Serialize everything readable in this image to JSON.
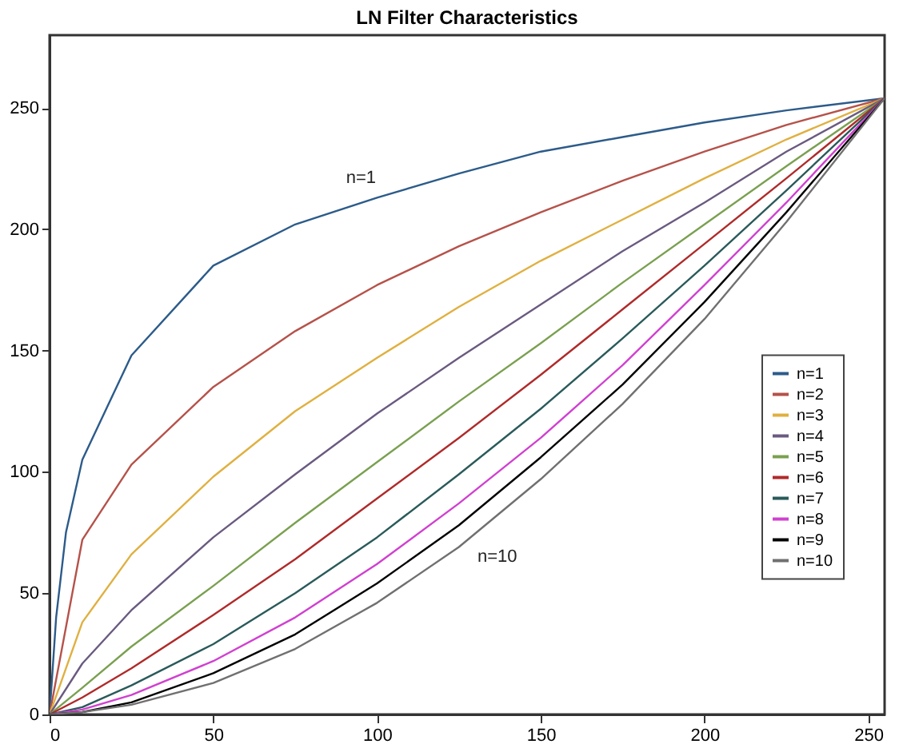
{
  "chart_data": {
    "type": "line",
    "title": "LN Filter Characteristics",
    "x": [
      0,
      10,
      25,
      50,
      75,
      100,
      125,
      150,
      175,
      200,
      225,
      255
    ],
    "series": [
      {
        "name": "n=1",
        "color": "#2c5b8a",
        "x": [
          0,
          2,
          5,
          10,
          25,
          50,
          75,
          100,
          125,
          150,
          175,
          200,
          225,
          255
        ],
        "values": [
          0,
          40,
          75,
          105,
          148,
          185,
          202,
          213,
          223,
          232,
          238,
          244,
          249,
          254
        ]
      },
      {
        "name": "n=2",
        "color": "#b5524a",
        "values": [
          0,
          72,
          103,
          135,
          158,
          177,
          193,
          207,
          220,
          232,
          243,
          254
        ]
      },
      {
        "name": "n=3",
        "color": "#e0b040",
        "values": [
          0,
          38,
          66,
          98,
          125,
          147,
          168,
          187,
          204,
          221,
          237,
          254
        ]
      },
      {
        "name": "n=4",
        "color": "#6a5a80",
        "values": [
          0,
          21,
          43,
          73,
          99,
          124,
          147,
          169,
          191,
          211,
          232,
          254
        ]
      },
      {
        "name": "n=5",
        "color": "#7aa050",
        "values": [
          0,
          11,
          28,
          53,
          79,
          104,
          129,
          153,
          178,
          202,
          226,
          254
        ]
      },
      {
        "name": "n=6",
        "color": "#b02a2a",
        "values": [
          0,
          7,
          19,
          41,
          64,
          89,
          114,
          140,
          167,
          194,
          221,
          254
        ]
      },
      {
        "name": "n=7",
        "color": "#2a5a5a",
        "values": [
          0,
          3,
          12,
          29,
          50,
          73,
          99,
          126,
          155,
          185,
          216,
          254
        ]
      },
      {
        "name": "n=8",
        "color": "#d040d0",
        "values": [
          0,
          2,
          8,
          22,
          40,
          62,
          87,
          114,
          144,
          177,
          211,
          254
        ]
      },
      {
        "name": "n=9",
        "color": "#000000",
        "values": [
          0,
          1,
          5,
          17,
          33,
          54,
          78,
          106,
          136,
          170,
          207,
          254
        ]
      },
      {
        "name": "n=10",
        "color": "#707070",
        "values": [
          0,
          1,
          4,
          13,
          27,
          46,
          69,
          97,
          128,
          163,
          203,
          254
        ]
      }
    ],
    "xlim": [
      0,
      255
    ],
    "xticks": [
      0,
      50,
      100,
      150,
      200,
      250
    ],
    "ylim": [
      0,
      280
    ],
    "yticks": [
      0,
      50,
      100,
      150,
      200,
      250
    ],
    "annotations": [
      {
        "text": "n=1",
        "x": 100,
        "y": 213
      },
      {
        "text": "n=10",
        "x": 125,
        "y": 69
      }
    ],
    "legend": "right",
    "grid": false,
    "marker": "none",
    "line_style": "solid"
  }
}
